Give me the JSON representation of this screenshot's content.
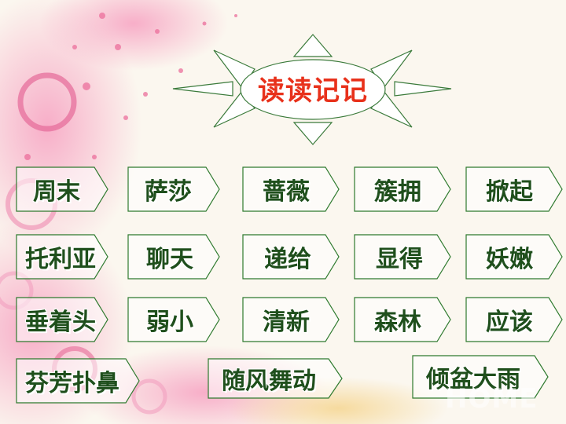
{
  "title": "读读记记",
  "watermark": "HOME",
  "words": [
    [
      "周末",
      "萨莎",
      "蔷薇",
      "簇拥",
      "掀起"
    ],
    [
      "托利亚",
      "聊天",
      "递给",
      "显得",
      "妖嫩"
    ],
    [
      "垂着头",
      "弱小",
      "清新",
      "森林",
      "应该"
    ],
    [
      "芬芳扑鼻",
      "随风舞动",
      "倾盆大雨"
    ]
  ],
  "colors": {
    "title": "#e8311b",
    "text": "#1f4f1c",
    "border": "#2e7a2e"
  }
}
